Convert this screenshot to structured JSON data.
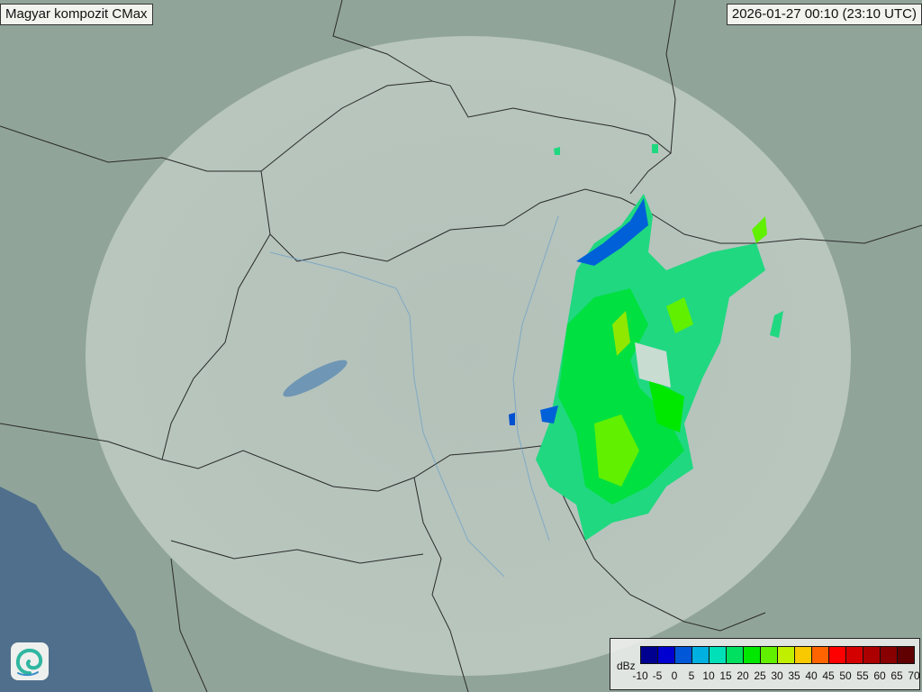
{
  "header": {
    "title": "Magyar kompozit  CMax",
    "timestamp": "2026-01-27 00:10 (23:10 UTC)"
  },
  "legend": {
    "unit": "dBz",
    "ticks": [
      "-10",
      "-5",
      "0",
      "5",
      "10",
      "15",
      "20",
      "25",
      "30",
      "35",
      "40",
      "45",
      "50",
      "55",
      "60",
      "65",
      "70"
    ],
    "colors": [
      "#000090",
      "#0000d0",
      "#0058d8",
      "#00b0e0",
      "#00e0b8",
      "#00e060",
      "#00e800",
      "#60f000",
      "#c0f000",
      "#f8c800",
      "#ff6400",
      "#ff0000",
      "#d40000",
      "#ac0000",
      "#880000",
      "#600000"
    ]
  },
  "logo": {
    "icon": "swirl-logo-icon"
  },
  "colors": {
    "land": "#8fa398",
    "sea": "#4f6f8c",
    "radar_coverage": "#dfe8e2",
    "border": "#2a2a2a",
    "rivers": "#6a9ec8"
  }
}
